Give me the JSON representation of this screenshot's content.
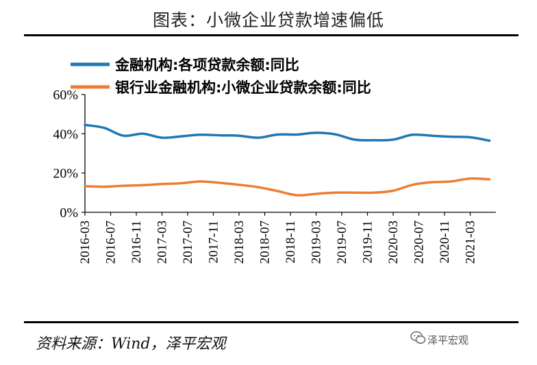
{
  "title": "图表：小微企业贷款增速偏低",
  "source": "资料来源：Wind，泽平宏观",
  "watermark": "泽平宏观",
  "colors": {
    "series1": "#1f77b4",
    "series2": "#ed7d31"
  },
  "chart_data": {
    "type": "line",
    "ylim": [
      0,
      60
    ],
    "yticks": [
      "0%",
      "20%",
      "40%",
      "60%"
    ],
    "x_tick_labels": [
      "2016-03",
      "2016-07",
      "2016-11",
      "2017-03",
      "2017-07",
      "2017-11",
      "2018-03",
      "2018-07",
      "2018-11",
      "2019-03",
      "2019-07",
      "2019-11",
      "2020-03",
      "2020-07",
      "2020-11",
      "2021-03"
    ],
    "legend_placement": "top",
    "grid": false,
    "series": [
      {
        "name": "金融机构:各项贷款余额:同比",
        "color": "#1f77b4",
        "x": [
          "2016-03",
          "2016-06",
          "2016-09",
          "2016-12",
          "2017-03",
          "2017-06",
          "2017-09",
          "2017-12",
          "2018-03",
          "2018-06",
          "2018-09",
          "2018-12",
          "2019-03",
          "2019-06",
          "2019-09",
          "2019-12",
          "2020-03",
          "2020-06",
          "2020-09",
          "2020-12",
          "2021-03",
          "2021-06"
        ],
        "values": [
          44.5,
          43.0,
          39.0,
          40.0,
          38.0,
          38.7,
          39.5,
          39.2,
          39.0,
          38.0,
          39.6,
          39.6,
          40.5,
          39.7,
          37.0,
          36.7,
          37.0,
          39.5,
          39.0,
          38.5,
          38.2,
          36.5
        ]
      },
      {
        "name": "银行业金融机构:小微企业贷款余额:同比",
        "color": "#ed7d31",
        "x": [
          "2016-03",
          "2016-06",
          "2016-09",
          "2016-12",
          "2017-03",
          "2017-06",
          "2017-09",
          "2017-12",
          "2018-03",
          "2018-06",
          "2018-09",
          "2018-12",
          "2019-03",
          "2019-06",
          "2019-09",
          "2019-12",
          "2020-03",
          "2020-06",
          "2020-09",
          "2020-12",
          "2021-03",
          "2021-06"
        ],
        "values": [
          13.3,
          13.0,
          13.5,
          13.8,
          14.4,
          14.8,
          15.7,
          15.0,
          14.0,
          12.8,
          10.8,
          8.7,
          9.4,
          10.0,
          10.0,
          10.0,
          11.0,
          14.0,
          15.3,
          15.7,
          17.2,
          16.8
        ]
      }
    ]
  }
}
